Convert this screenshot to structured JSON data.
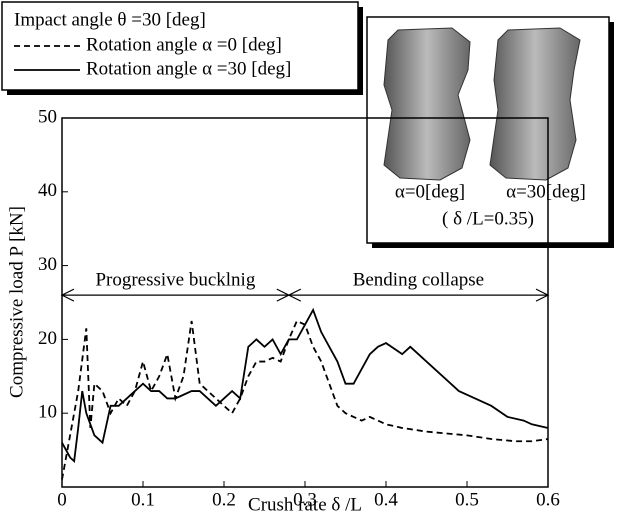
{
  "chart_data": {
    "type": "line",
    "xlabel": "Crush rate  δ /L",
    "ylabel": "Compressive load P [kN]",
    "xlim": [
      0,
      0.6
    ],
    "xticks": [
      0,
      0.1,
      0.2,
      0.3,
      0.4,
      0.5,
      0.6
    ],
    "ylim": [
      0,
      50
    ],
    "yticks": [
      10,
      20,
      30,
      40,
      50
    ],
    "legend_title": "Impact angle θ =30 [deg]",
    "series": [
      {
        "name": "Rotation angle α =0 [deg]",
        "color": "#000000",
        "style": "dashed",
        "x": [
          0,
          0.01,
          0.02,
          0.03,
          0.035,
          0.04,
          0.05,
          0.06,
          0.07,
          0.08,
          0.09,
          0.1,
          0.11,
          0.12,
          0.13,
          0.14,
          0.15,
          0.16,
          0.17,
          0.18,
          0.19,
          0.2,
          0.21,
          0.22,
          0.23,
          0.24,
          0.25,
          0.26,
          0.27,
          0.28,
          0.29,
          0.3,
          0.31,
          0.32,
          0.33,
          0.34,
          0.35,
          0.36,
          0.37,
          0.38,
          0.4,
          0.42,
          0.45,
          0.48,
          0.5,
          0.53,
          0.56,
          0.58,
          0.6
        ],
        "values": [
          1,
          7,
          13,
          21.5,
          8,
          14,
          13,
          10,
          12,
          11,
          13,
          17,
          13,
          15,
          18,
          12,
          15,
          22.5,
          14,
          13,
          12,
          11,
          10,
          12,
          15,
          17,
          17,
          17.5,
          17,
          20,
          22.5,
          22,
          19,
          17,
          14,
          11,
          10,
          9.5,
          9,
          9.5,
          8.5,
          8,
          7.5,
          7.2,
          7,
          6.5,
          6.2,
          6.2,
          6.5
        ]
      },
      {
        "name": "Rotation angle α =30 [deg]",
        "color": "#000000",
        "style": "solid",
        "x": [
          0,
          0.01,
          0.015,
          0.02,
          0.025,
          0.03,
          0.04,
          0.05,
          0.06,
          0.07,
          0.08,
          0.09,
          0.1,
          0.11,
          0.12,
          0.13,
          0.14,
          0.15,
          0.16,
          0.17,
          0.18,
          0.19,
          0.2,
          0.21,
          0.22,
          0.23,
          0.24,
          0.25,
          0.26,
          0.27,
          0.28,
          0.29,
          0.3,
          0.31,
          0.32,
          0.33,
          0.34,
          0.35,
          0.36,
          0.37,
          0.38,
          0.39,
          0.4,
          0.42,
          0.43,
          0.45,
          0.47,
          0.49,
          0.51,
          0.53,
          0.55,
          0.57,
          0.58,
          0.6
        ],
        "values": [
          6,
          4,
          3.5,
          8,
          13,
          10,
          7,
          6,
          11,
          11,
          12,
          13,
          14,
          13,
          13,
          12,
          12,
          12.5,
          13,
          13,
          12,
          11,
          12,
          13,
          12,
          19,
          20,
          19,
          20,
          18,
          20,
          20,
          22,
          24,
          21,
          19,
          17,
          14,
          14,
          16,
          18,
          19,
          19.5,
          18,
          19,
          17,
          15,
          13,
          12,
          11,
          9.5,
          9,
          8.5,
          8
        ]
      }
    ],
    "annotations": [
      {
        "text": "Progressive bucklnig",
        "x0": 0,
        "x1": 0.28,
        "y": 26
      },
      {
        "text": "Bending collapse",
        "x0": 0.28,
        "x1": 0.6,
        "y": 26
      }
    ],
    "inset": {
      "labels": [
        "α=0[deg]",
        "α=30[deg]"
      ],
      "caption": "( δ /L=0.35)"
    }
  }
}
